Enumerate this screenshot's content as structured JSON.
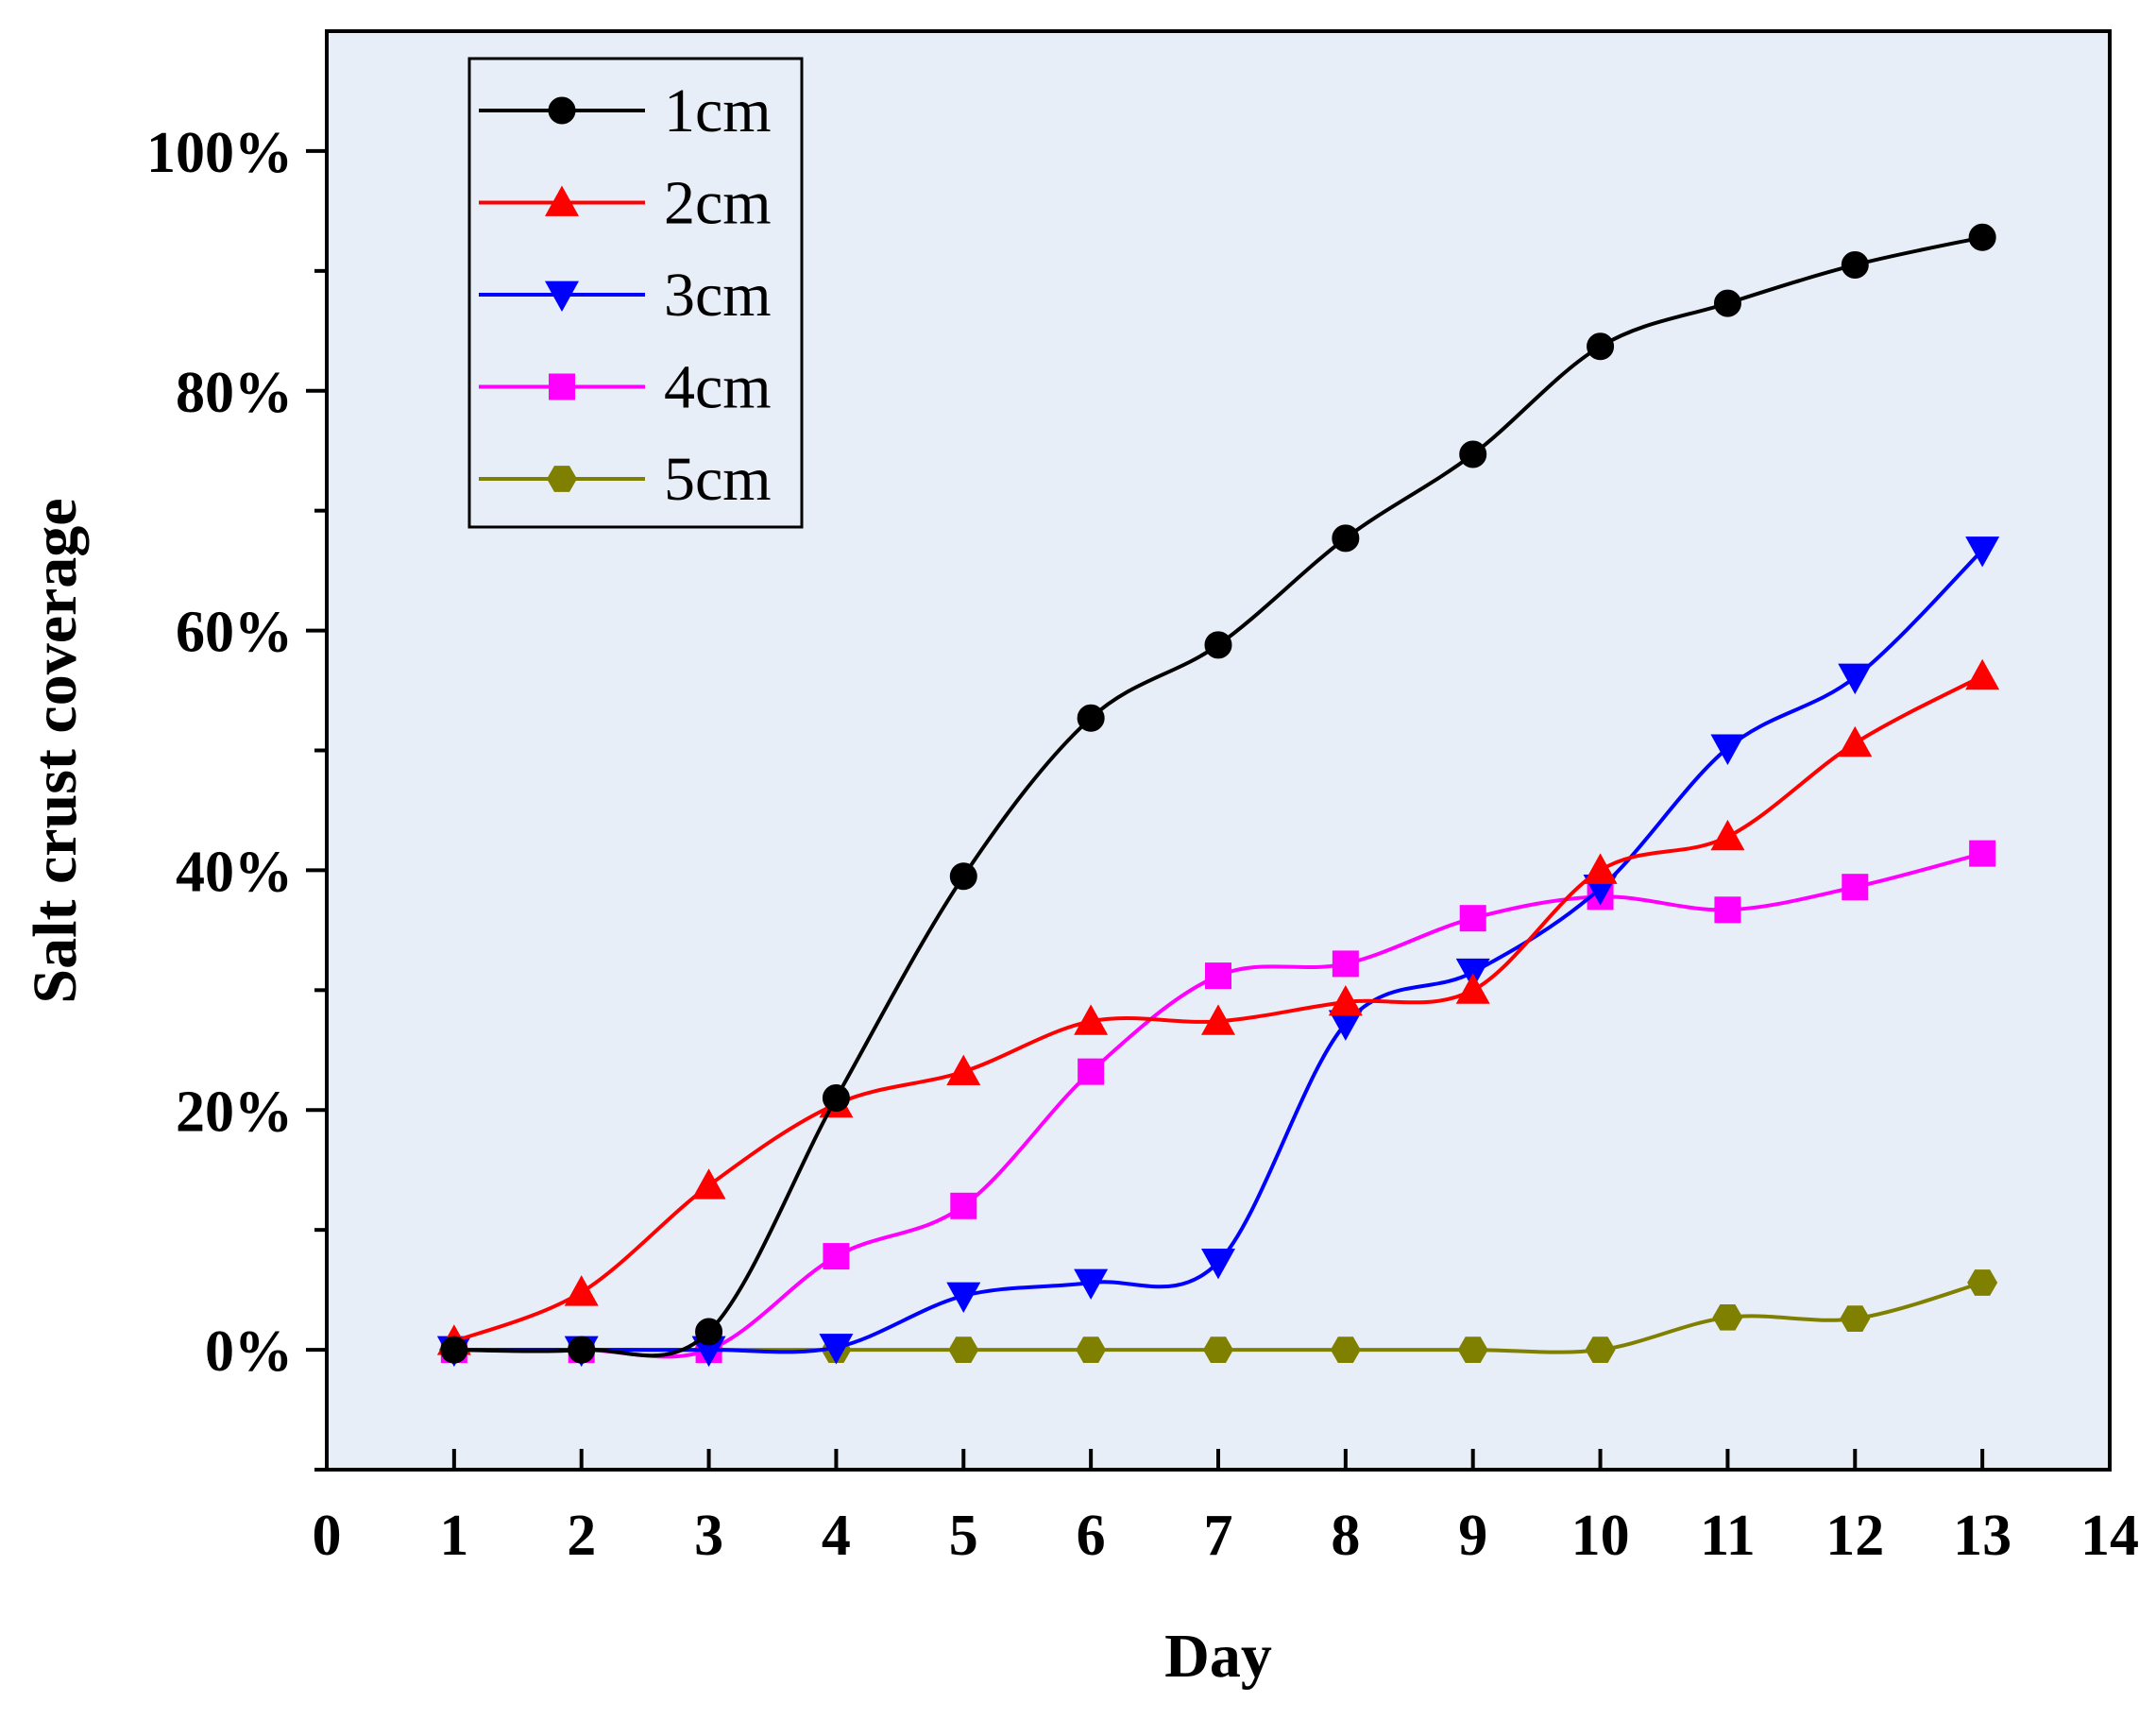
{
  "chart_data": {
    "type": "line",
    "title": "",
    "xlabel": "Day",
    "ylabel": "Salt crust coverage",
    "xlim": [
      0,
      14
    ],
    "ylim": [
      -0.1,
      1.1
    ],
    "xticks": [
      0,
      1,
      2,
      3,
      4,
      5,
      6,
      7,
      8,
      9,
      10,
      11,
      12,
      13,
      14
    ],
    "xtick_labels": [
      "0",
      "1",
      "2",
      "3",
      "4",
      "5",
      "6",
      "7",
      "8",
      "9",
      "10",
      "11",
      "12",
      "13",
      "14"
    ],
    "yticks": [
      0,
      0.2,
      0.4,
      0.6,
      0.8,
      1.0
    ],
    "ytick_labels": [
      "0%",
      "20%",
      "40%",
      "60%",
      "80%",
      "100%"
    ],
    "y_minor_ticks": [
      -0.1,
      0.1,
      0.3,
      0.5,
      0.7,
      0.9
    ],
    "plot_background": "#E8EEF8",
    "grid": false,
    "legend_position": "top-left",
    "x": [
      1,
      2,
      3,
      4,
      5,
      6,
      7,
      8,
      9,
      10,
      11,
      12,
      13
    ],
    "series": [
      {
        "name": "1cm",
        "color": "#000000",
        "marker": "circle",
        "values": [
          0.0,
          0.0,
          0.015,
          0.21,
          0.395,
          0.527,
          0.588,
          0.677,
          0.747,
          0.837,
          0.873,
          0.905,
          0.928
        ]
      },
      {
        "name": "2cm",
        "color": "#FF0000",
        "marker": "triangle-up",
        "values": [
          0.007,
          0.048,
          0.137,
          0.205,
          0.232,
          0.274,
          0.274,
          0.29,
          0.3,
          0.4,
          0.428,
          0.506,
          0.562
        ]
      },
      {
        "name": "3cm",
        "color": "#0000FF",
        "marker": "triangle-down",
        "values": [
          0.0,
          0.0,
          0.0,
          0.002,
          0.045,
          0.056,
          0.073,
          0.272,
          0.315,
          0.385,
          0.502,
          0.561,
          0.667
        ]
      },
      {
        "name": "4cm",
        "color": "#FF00FF",
        "marker": "square",
        "values": [
          0.0,
          0.0,
          0.0,
          0.078,
          0.12,
          0.232,
          0.312,
          0.322,
          0.36,
          0.378,
          0.367,
          0.386,
          0.414
        ]
      },
      {
        "name": "5cm",
        "color": "#808000",
        "marker": "hexagon",
        "values": [
          0.0,
          0.0,
          0.0,
          0.0,
          0.0,
          0.0,
          0.0,
          0.0,
          0.0,
          0.0,
          0.027,
          0.026,
          0.056
        ]
      }
    ]
  }
}
